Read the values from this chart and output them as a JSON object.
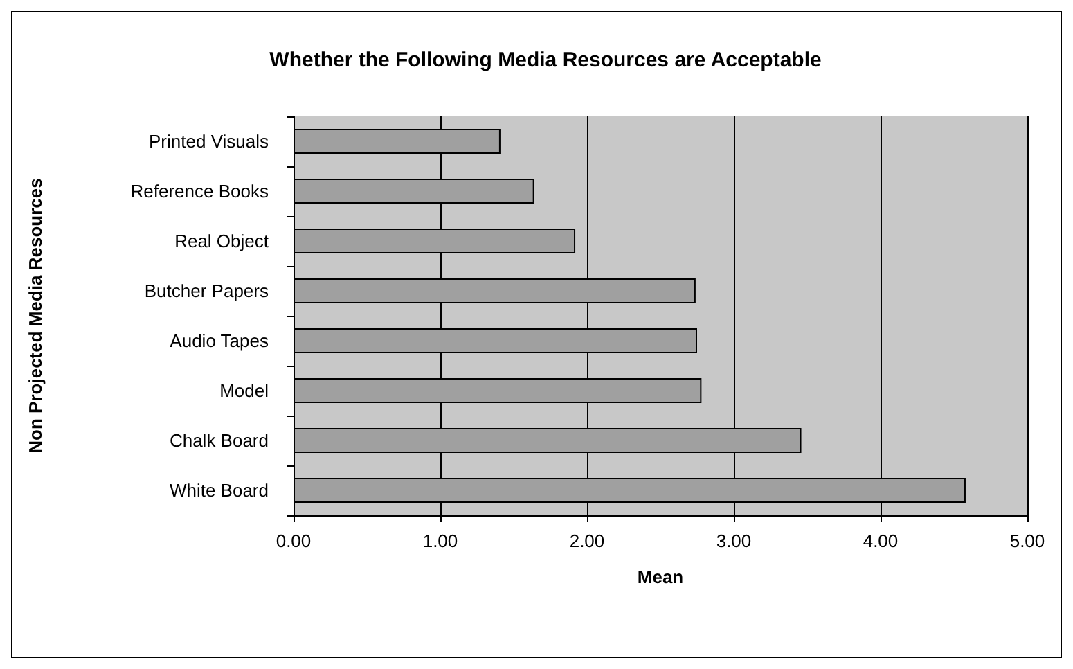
{
  "chart_data": {
    "type": "bar",
    "orientation": "horizontal",
    "title": "Whether the Following Media Resources are Acceptable",
    "xlabel": "Mean",
    "ylabel": "Non Projected Media Resources",
    "categories": [
      "Printed Visuals",
      "Reference Books",
      "Real Object",
      "Butcher Papers",
      "Audio Tapes",
      "Model",
      "Chalk Board",
      "White Board"
    ],
    "values": [
      1.41,
      1.64,
      1.92,
      2.74,
      2.75,
      2.78,
      3.46,
      4.58
    ],
    "color": "#a0a0a0",
    "xlim": [
      0,
      5
    ],
    "xticks": [
      {
        "value": 0,
        "label": "0.00"
      },
      {
        "value": 1,
        "label": "1.00"
      },
      {
        "value": 2,
        "label": "2.00"
      },
      {
        "value": 3,
        "label": "3.00"
      },
      {
        "value": 4,
        "label": "4.00"
      },
      {
        "value": 5,
        "label": "5.00"
      }
    ],
    "grid": "x"
  }
}
